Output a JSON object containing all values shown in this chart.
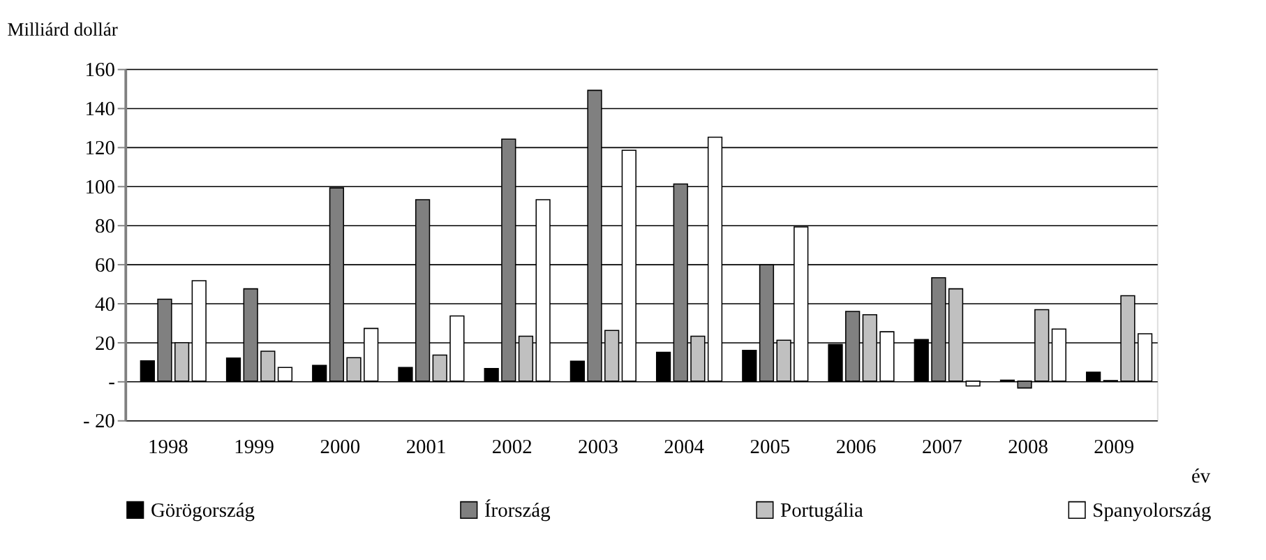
{
  "chart_data": {
    "type": "bar",
    "ylabel": "Milliárd dollár",
    "xlabel": "év",
    "categories": [
      "1998",
      "1999",
      "2000",
      "2001",
      "2002",
      "2003",
      "2004",
      "2005",
      "2006",
      "2007",
      "2008",
      "2009"
    ],
    "series": [
      {
        "name": "Görögország",
        "color": "#000000",
        "values": [
          10.4,
          11.8,
          8.1,
          7,
          6.5,
          10.2,
          14.8,
          15.8,
          18.8,
          21.3,
          0.5,
          4.6
        ]
      },
      {
        "name": "Írország",
        "color": "#808080",
        "values": [
          42,
          47.3,
          99,
          93,
          124,
          149,
          101,
          59.6,
          35.7,
          53,
          -3.5,
          0.3
        ]
      },
      {
        "name": "Portugália",
        "color": "#c0c0c0",
        "values": [
          19.7,
          15.3,
          12,
          13.4,
          23,
          26,
          23,
          21,
          34,
          47.3,
          36.6,
          43.8
        ]
      },
      {
        "name": "Spanyolország",
        "color": "#ffffff",
        "values": [
          51.5,
          7,
          27,
          33.4,
          93,
          118.3,
          125,
          79,
          25.3,
          -2.5,
          26.7,
          24.3
        ]
      }
    ],
    "ylim": [
      -20,
      160
    ],
    "yticks": [
      {
        "value": -20,
        "label": "-  20"
      },
      {
        "value": 0,
        "label": "-"
      },
      20,
      40,
      60,
      80,
      100,
      120,
      140,
      160
    ],
    "grid": "y",
    "legend": "bottom"
  }
}
